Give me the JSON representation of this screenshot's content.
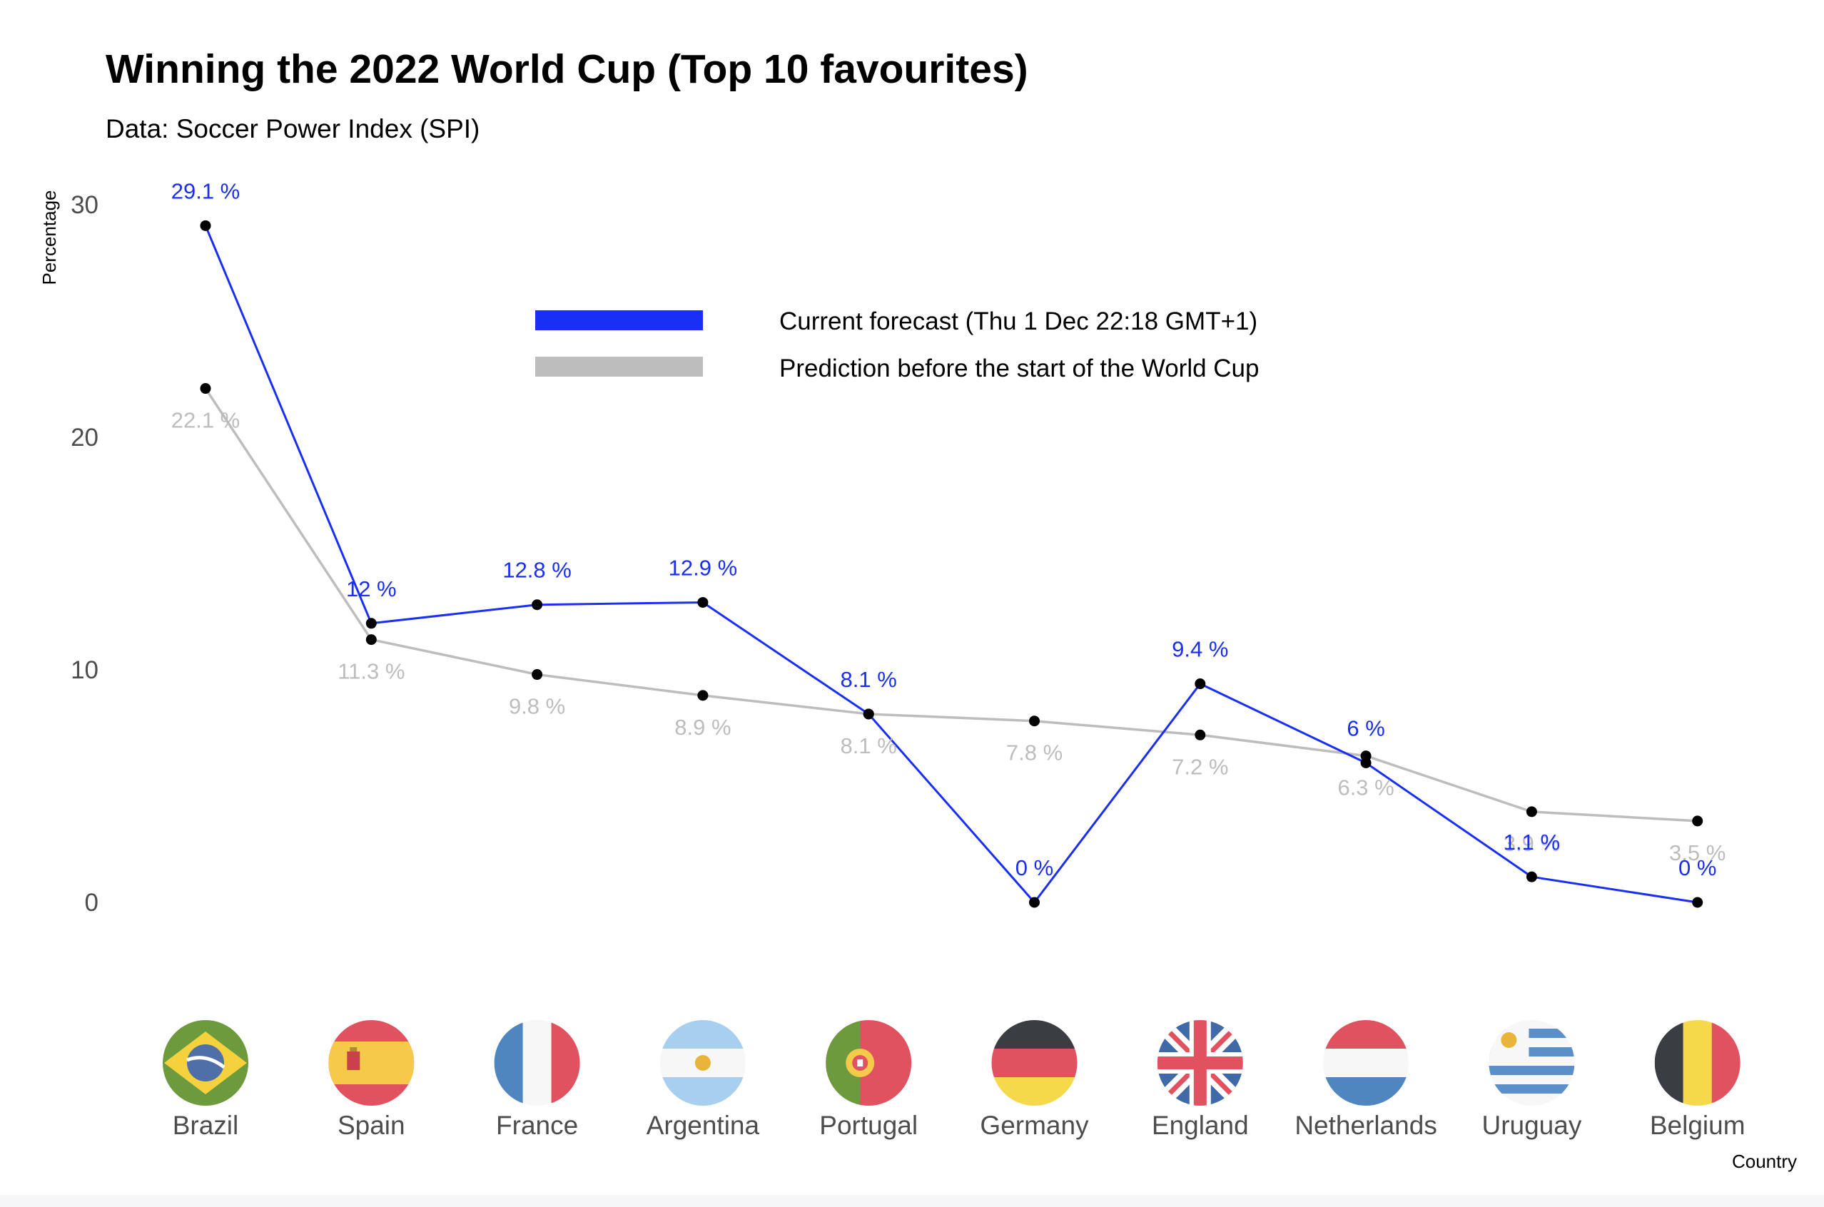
{
  "title": "Winning the 2022 World Cup (Top 10 favourites)",
  "subtitle": "Data: Soccer Power Index (SPI)",
  "chart_data": {
    "type": "line",
    "title": "Winning the 2022 World Cup (Top 10 favourites)",
    "subtitle": "Data: Soccer Power Index (SPI)",
    "xlabel": "Country",
    "ylabel": "Percentage",
    "ylim": [
      0,
      30
    ],
    "yticks": [
      0,
      10,
      20,
      30
    ],
    "grid": false,
    "legend_position": "top-center",
    "categories": [
      "Brazil",
      "Spain",
      "France",
      "Argentina",
      "Portugal",
      "Germany",
      "England",
      "Netherlands",
      "Uruguay",
      "Belgium"
    ],
    "flag_icons": [
      "brazil-flag-icon",
      "spain-flag-icon",
      "france-flag-icon",
      "argentina-flag-icon",
      "portugal-flag-icon",
      "germany-flag-icon",
      "england-flag-icon",
      "netherlands-flag-icon",
      "uruguay-flag-icon",
      "belgium-flag-icon"
    ],
    "series": [
      {
        "name": "Current forecast (Thu 1 Dec 22:18 GMT+1)",
        "color": "#1a2ff5",
        "values": [
          29.1,
          12,
          12.8,
          12.9,
          8.1,
          0,
          9.4,
          6,
          1.1,
          0
        ],
        "labels": [
          "29.1 %",
          "12 %",
          "12.8 %",
          "12.9 %",
          "8.1 %",
          "0 %",
          "9.4 %",
          "6 %",
          "1.1 %",
          "0 %"
        ]
      },
      {
        "name": "Prediction before the start of the World Cup",
        "color": "#bdbdbd",
        "values": [
          22.1,
          11.3,
          9.8,
          8.9,
          8.1,
          7.8,
          7.2,
          6.3,
          3.9,
          3.5
        ],
        "labels": [
          "22.1 %",
          "11.3 %",
          "9.8 %",
          "8.9 %",
          "8.1 %",
          "7.8 %",
          "7.2 %",
          "6.3 %",
          "3.9 %",
          "3.5 %"
        ]
      }
    ]
  }
}
